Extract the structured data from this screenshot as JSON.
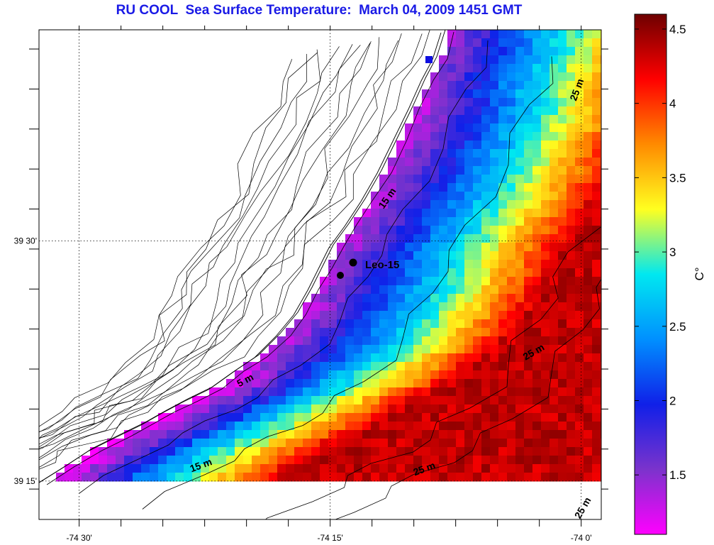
{
  "map": {
    "title": "RU COOL  Sea Surface Temperature:  March 04, 2009 1451 GMT",
    "lat_ticks": [
      {
        "value": 39.5,
        "label": "39 30'"
      },
      {
        "value": 39.25,
        "label": "39 15'"
      }
    ],
    "lon_ticks": [
      {
        "value": -74.5,
        "label": "-74 30'"
      },
      {
        "value": -74.25,
        "label": "-74 15'"
      },
      {
        "value": -74.0,
        "label": "-74 0'"
      }
    ],
    "lon_range": [
      -74.54,
      -73.98
    ],
    "lat_range": [
      39.21,
      39.72
    ],
    "contour_labels": [
      "5 m",
      "15 m",
      "15 m",
      "25 m",
      "25 m",
      "25 m",
      "25 m"
    ],
    "stations": [
      {
        "name": "Leo-15",
        "label": "Leo-15"
      }
    ]
  },
  "colorbar": {
    "unit_label": "C°",
    "min": 1.1,
    "max": 4.6,
    "ticks": [
      "1.5",
      "2",
      "2.5",
      "3",
      "3.5",
      "4",
      "4.5"
    ],
    "tick_values": [
      1.5,
      2,
      2.5,
      3,
      3.5,
      4,
      4.5
    ],
    "colors": [
      "#ff00ff",
      "#7b33cc",
      "#1020e8",
      "#0090ff",
      "#00e8f0",
      "#ffff20",
      "#ff8a00",
      "#ff0000",
      "#6e0000"
    ]
  }
}
